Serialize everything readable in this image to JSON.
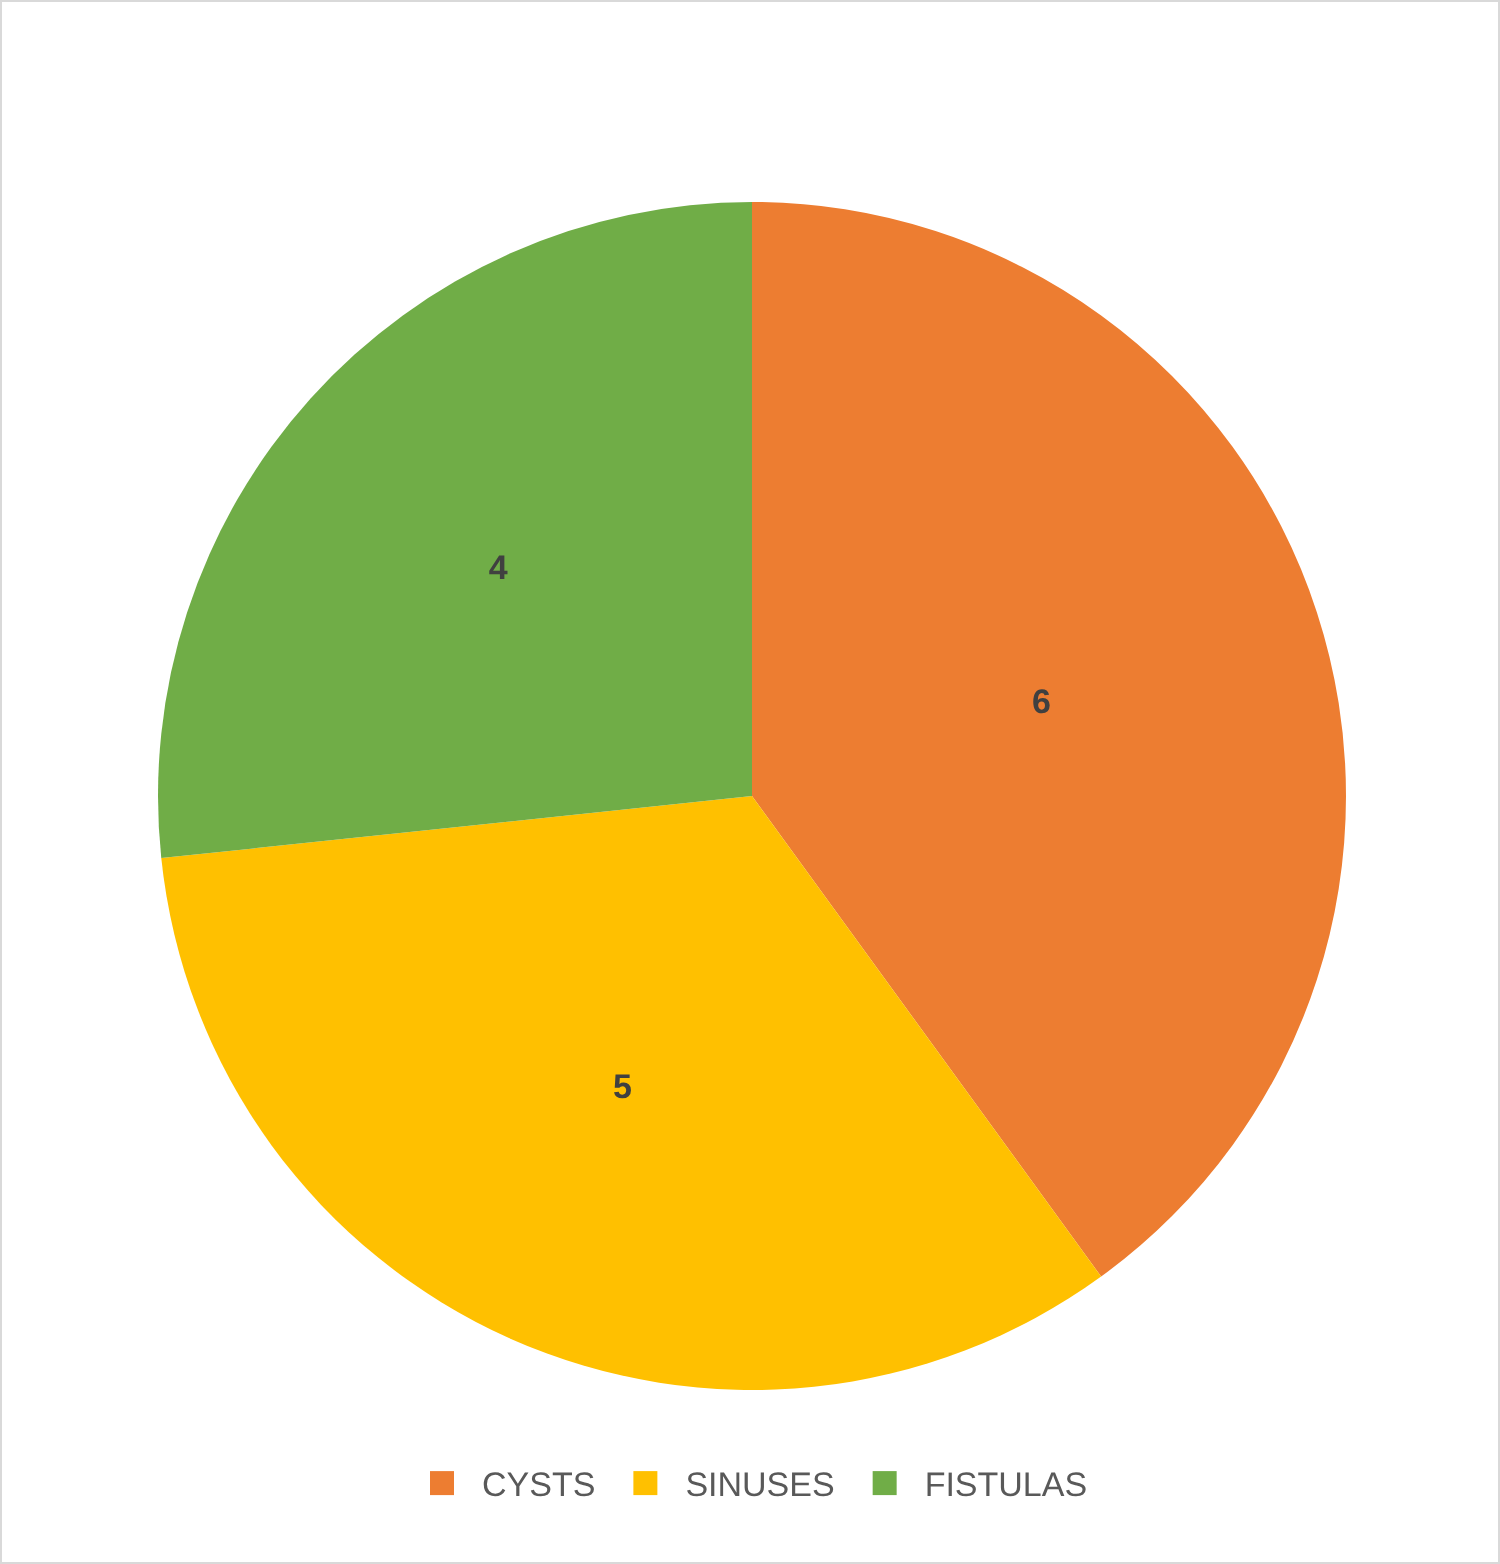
{
  "chart_data": {
    "type": "pie",
    "categories": [
      "CYSTS",
      "SINUSES",
      "FISTULAS"
    ],
    "values": [
      6,
      5,
      4
    ],
    "colors": [
      "#ed7d31",
      "#ffc000",
      "#70ad47"
    ],
    "data_labels": true,
    "legend": "bottom"
  }
}
